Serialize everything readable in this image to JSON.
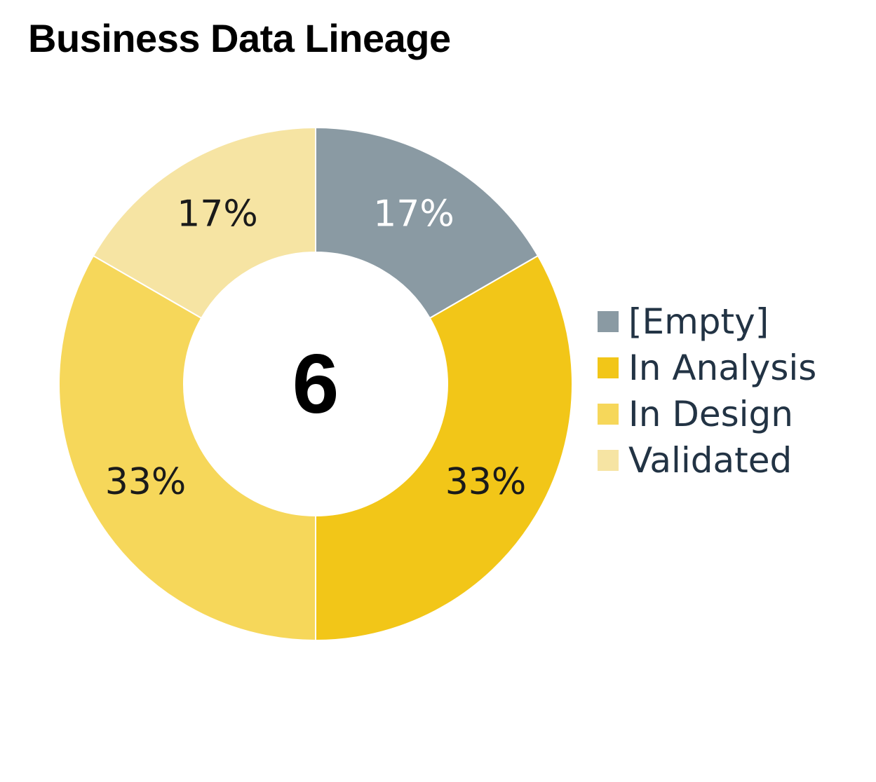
{
  "title": "Business Data Lineage",
  "chart_data": {
    "type": "pie",
    "variant": "donut",
    "total_label": "6",
    "categories": [
      "[Empty]",
      "In Analysis",
      "In Design",
      "Validated"
    ],
    "values": [
      1,
      2,
      2,
      1
    ],
    "percent_labels": [
      "17%",
      "33%",
      "33%",
      "17%"
    ],
    "colors": [
      "#8a9aa3",
      "#f2c618",
      "#f6d75a",
      "#f6e4a3"
    ],
    "label_colors": [
      "#ffffff",
      "#1a1a1a",
      "#1a1a1a",
      "#1a1a1a"
    ],
    "legend_position": "right"
  }
}
